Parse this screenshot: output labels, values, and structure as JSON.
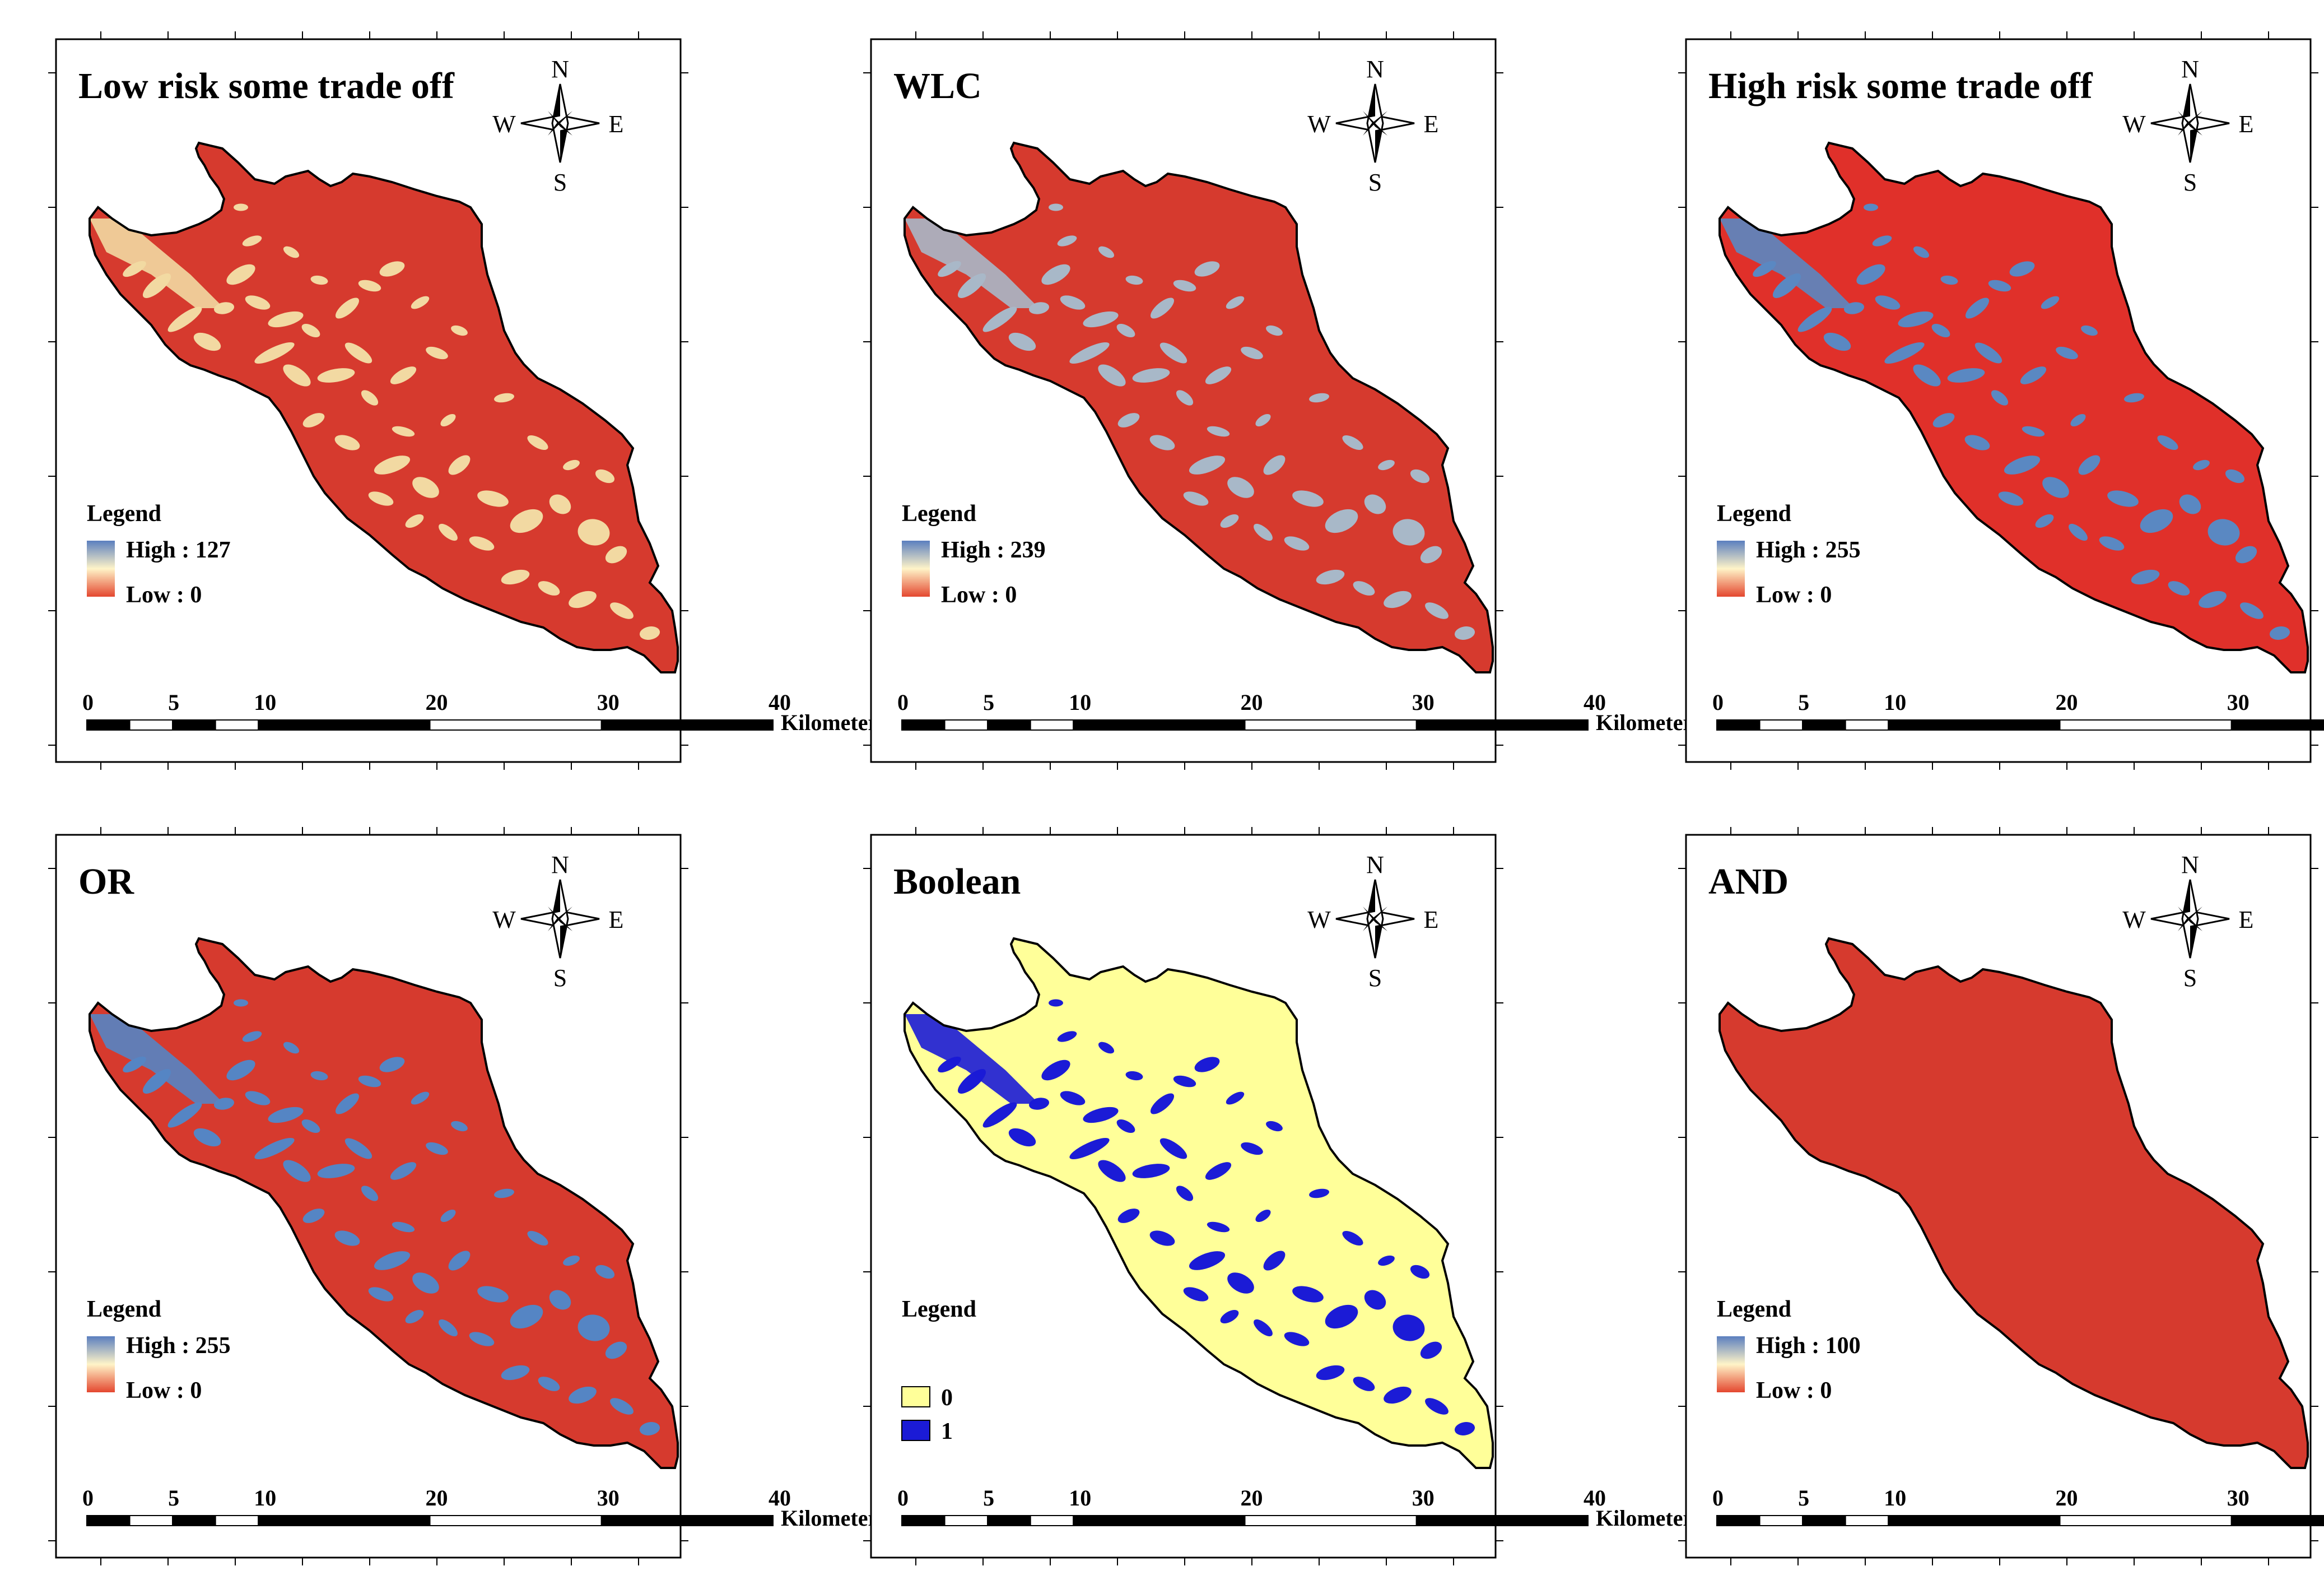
{
  "figure": {
    "panels": [
      {
        "id": "low-risk",
        "title": "Low risk some trade off",
        "legend_title": "Legend",
        "legend_type": "gradient",
        "legend_high": "High : 127",
        "legend_low": "Low : 0",
        "base_color": "#d63a2e",
        "patch_color": "#f2d9a2"
      },
      {
        "id": "wlc",
        "title": "WLC",
        "legend_title": "Legend",
        "legend_type": "gradient",
        "legend_high": "High : 239",
        "legend_low": "Low : 0",
        "base_color": "#d63a2e",
        "patch_color": "#a8b8c8"
      },
      {
        "id": "high-risk",
        "title": "High risk some trade off",
        "legend_title": "Legend",
        "legend_type": "gradient",
        "legend_high": "High : 255",
        "legend_low": "Low : 0",
        "base_color": "#e0302a",
        "patch_color": "#5a88c2"
      },
      {
        "id": "or",
        "title": "OR",
        "legend_title": "Legend",
        "legend_type": "gradient",
        "legend_high": "High : 255",
        "legend_low": "Low : 0",
        "base_color": "#d63a2e",
        "patch_color": "#5585c4"
      },
      {
        "id": "boolean",
        "title": "Boolean",
        "legend_title": "Legend",
        "legend_type": "classes",
        "legend_class_0": "0",
        "legend_class_1": "1",
        "base_color": "#ffff99",
        "patch_color": "#1b1bd6"
      },
      {
        "id": "and",
        "title": "AND",
        "legend_title": "Legend",
        "legend_type": "gradient",
        "legend_high": "High : 100",
        "legend_low": "Low : 0",
        "base_color": "#d63a2e",
        "patch_color": "#d63a2e"
      }
    ],
    "compass": {
      "north": "N",
      "south": "S",
      "east": "E",
      "west": "W"
    },
    "scale_bar": {
      "ticks": [
        "0",
        "5",
        "10",
        "20",
        "30",
        "40"
      ],
      "unit": "Kilometers"
    },
    "gradient_colors": {
      "high": "#5b7fbf",
      "mid": "#fff4c8",
      "low": "#e4472f"
    },
    "outline_color": "#000000"
  }
}
